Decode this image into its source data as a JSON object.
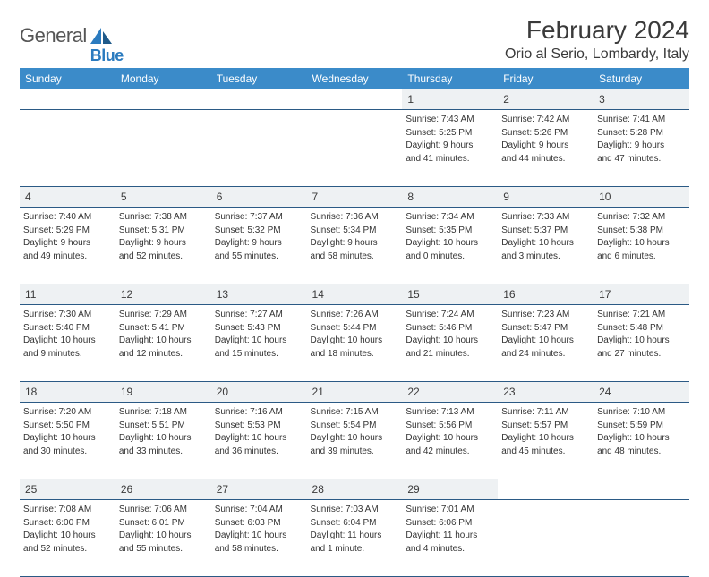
{
  "logo": {
    "text1": "General",
    "text2": "Blue"
  },
  "title": "February 2024",
  "location": "Orio al Serio, Lombardy, Italy",
  "colors": {
    "header_bg": "#3b8bc9",
    "header_text": "#ffffff",
    "daynum_bg": "#eef1f3",
    "border": "#2b5a85",
    "logo_gray": "#555555",
    "logo_blue": "#2b7bbf"
  },
  "fonts": {
    "title_size": 28,
    "location_size": 16,
    "header_size": 12,
    "daynum_size": 12,
    "cell_size": 10
  },
  "weekdays": [
    "Sunday",
    "Monday",
    "Tuesday",
    "Wednesday",
    "Thursday",
    "Friday",
    "Saturday"
  ],
  "weeks": [
    [
      null,
      null,
      null,
      null,
      {
        "day": "1",
        "sunrise": "Sunrise: 7:43 AM",
        "sunset": "Sunset: 5:25 PM",
        "daylight1": "Daylight: 9 hours",
        "daylight2": "and 41 minutes."
      },
      {
        "day": "2",
        "sunrise": "Sunrise: 7:42 AM",
        "sunset": "Sunset: 5:26 PM",
        "daylight1": "Daylight: 9 hours",
        "daylight2": "and 44 minutes."
      },
      {
        "day": "3",
        "sunrise": "Sunrise: 7:41 AM",
        "sunset": "Sunset: 5:28 PM",
        "daylight1": "Daylight: 9 hours",
        "daylight2": "and 47 minutes."
      }
    ],
    [
      {
        "day": "4",
        "sunrise": "Sunrise: 7:40 AM",
        "sunset": "Sunset: 5:29 PM",
        "daylight1": "Daylight: 9 hours",
        "daylight2": "and 49 minutes."
      },
      {
        "day": "5",
        "sunrise": "Sunrise: 7:38 AM",
        "sunset": "Sunset: 5:31 PM",
        "daylight1": "Daylight: 9 hours",
        "daylight2": "and 52 minutes."
      },
      {
        "day": "6",
        "sunrise": "Sunrise: 7:37 AM",
        "sunset": "Sunset: 5:32 PM",
        "daylight1": "Daylight: 9 hours",
        "daylight2": "and 55 minutes."
      },
      {
        "day": "7",
        "sunrise": "Sunrise: 7:36 AM",
        "sunset": "Sunset: 5:34 PM",
        "daylight1": "Daylight: 9 hours",
        "daylight2": "and 58 minutes."
      },
      {
        "day": "8",
        "sunrise": "Sunrise: 7:34 AM",
        "sunset": "Sunset: 5:35 PM",
        "daylight1": "Daylight: 10 hours",
        "daylight2": "and 0 minutes."
      },
      {
        "day": "9",
        "sunrise": "Sunrise: 7:33 AM",
        "sunset": "Sunset: 5:37 PM",
        "daylight1": "Daylight: 10 hours",
        "daylight2": "and 3 minutes."
      },
      {
        "day": "10",
        "sunrise": "Sunrise: 7:32 AM",
        "sunset": "Sunset: 5:38 PM",
        "daylight1": "Daylight: 10 hours",
        "daylight2": "and 6 minutes."
      }
    ],
    [
      {
        "day": "11",
        "sunrise": "Sunrise: 7:30 AM",
        "sunset": "Sunset: 5:40 PM",
        "daylight1": "Daylight: 10 hours",
        "daylight2": "and 9 minutes."
      },
      {
        "day": "12",
        "sunrise": "Sunrise: 7:29 AM",
        "sunset": "Sunset: 5:41 PM",
        "daylight1": "Daylight: 10 hours",
        "daylight2": "and 12 minutes."
      },
      {
        "day": "13",
        "sunrise": "Sunrise: 7:27 AM",
        "sunset": "Sunset: 5:43 PM",
        "daylight1": "Daylight: 10 hours",
        "daylight2": "and 15 minutes."
      },
      {
        "day": "14",
        "sunrise": "Sunrise: 7:26 AM",
        "sunset": "Sunset: 5:44 PM",
        "daylight1": "Daylight: 10 hours",
        "daylight2": "and 18 minutes."
      },
      {
        "day": "15",
        "sunrise": "Sunrise: 7:24 AM",
        "sunset": "Sunset: 5:46 PM",
        "daylight1": "Daylight: 10 hours",
        "daylight2": "and 21 minutes."
      },
      {
        "day": "16",
        "sunrise": "Sunrise: 7:23 AM",
        "sunset": "Sunset: 5:47 PM",
        "daylight1": "Daylight: 10 hours",
        "daylight2": "and 24 minutes."
      },
      {
        "day": "17",
        "sunrise": "Sunrise: 7:21 AM",
        "sunset": "Sunset: 5:48 PM",
        "daylight1": "Daylight: 10 hours",
        "daylight2": "and 27 minutes."
      }
    ],
    [
      {
        "day": "18",
        "sunrise": "Sunrise: 7:20 AM",
        "sunset": "Sunset: 5:50 PM",
        "daylight1": "Daylight: 10 hours",
        "daylight2": "and 30 minutes."
      },
      {
        "day": "19",
        "sunrise": "Sunrise: 7:18 AM",
        "sunset": "Sunset: 5:51 PM",
        "daylight1": "Daylight: 10 hours",
        "daylight2": "and 33 minutes."
      },
      {
        "day": "20",
        "sunrise": "Sunrise: 7:16 AM",
        "sunset": "Sunset: 5:53 PM",
        "daylight1": "Daylight: 10 hours",
        "daylight2": "and 36 minutes."
      },
      {
        "day": "21",
        "sunrise": "Sunrise: 7:15 AM",
        "sunset": "Sunset: 5:54 PM",
        "daylight1": "Daylight: 10 hours",
        "daylight2": "and 39 minutes."
      },
      {
        "day": "22",
        "sunrise": "Sunrise: 7:13 AM",
        "sunset": "Sunset: 5:56 PM",
        "daylight1": "Daylight: 10 hours",
        "daylight2": "and 42 minutes."
      },
      {
        "day": "23",
        "sunrise": "Sunrise: 7:11 AM",
        "sunset": "Sunset: 5:57 PM",
        "daylight1": "Daylight: 10 hours",
        "daylight2": "and 45 minutes."
      },
      {
        "day": "24",
        "sunrise": "Sunrise: 7:10 AM",
        "sunset": "Sunset: 5:59 PM",
        "daylight1": "Daylight: 10 hours",
        "daylight2": "and 48 minutes."
      }
    ],
    [
      {
        "day": "25",
        "sunrise": "Sunrise: 7:08 AM",
        "sunset": "Sunset: 6:00 PM",
        "daylight1": "Daylight: 10 hours",
        "daylight2": "and 52 minutes."
      },
      {
        "day": "26",
        "sunrise": "Sunrise: 7:06 AM",
        "sunset": "Sunset: 6:01 PM",
        "daylight1": "Daylight: 10 hours",
        "daylight2": "and 55 minutes."
      },
      {
        "day": "27",
        "sunrise": "Sunrise: 7:04 AM",
        "sunset": "Sunset: 6:03 PM",
        "daylight1": "Daylight: 10 hours",
        "daylight2": "and 58 minutes."
      },
      {
        "day": "28",
        "sunrise": "Sunrise: 7:03 AM",
        "sunset": "Sunset: 6:04 PM",
        "daylight1": "Daylight: 11 hours",
        "daylight2": "and 1 minute."
      },
      {
        "day": "29",
        "sunrise": "Sunrise: 7:01 AM",
        "sunset": "Sunset: 6:06 PM",
        "daylight1": "Daylight: 11 hours",
        "daylight2": "and 4 minutes."
      },
      null,
      null
    ]
  ]
}
